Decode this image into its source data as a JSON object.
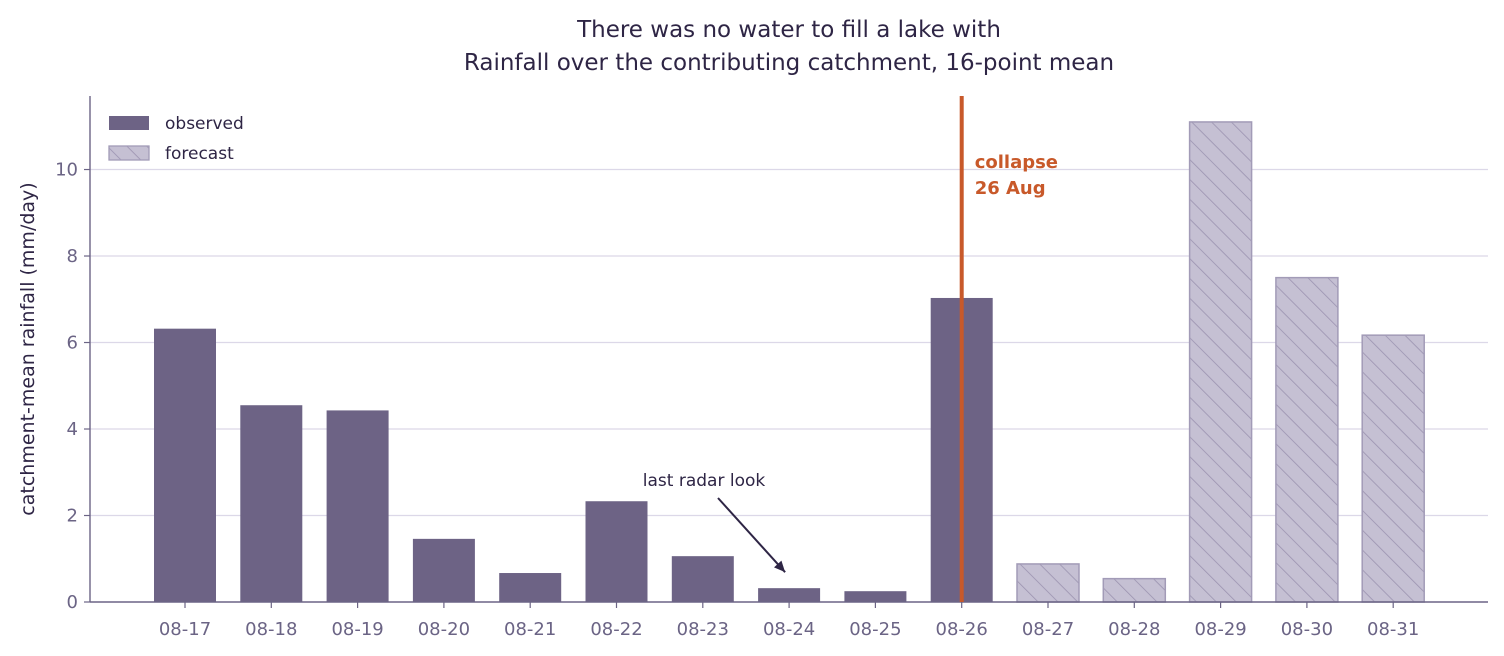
{
  "chart_data": {
    "type": "bar",
    "title": "There was no water to fill a lake with",
    "subtitle": "Rainfall over the contributing catchment, 16-point mean",
    "xlabel": "",
    "ylabel": "catchment-mean rainfall (mm/day)",
    "ylim": [
      0,
      11.7
    ],
    "yticks": [
      0,
      2,
      4,
      6,
      8,
      10
    ],
    "grid": "horizontal",
    "legend_position": "top-left",
    "categories": [
      "08-17",
      "08-18",
      "08-19",
      "08-20",
      "08-21",
      "08-22",
      "08-23",
      "08-24",
      "08-25",
      "08-26",
      "08-27",
      "08-28",
      "08-29",
      "08-30",
      "08-31"
    ],
    "series": [
      {
        "name": "observed",
        "color": "#6d6385",
        "values": [
          6.32,
          4.55,
          4.43,
          1.46,
          0.67,
          2.33,
          1.06,
          0.32,
          0.25,
          7.03,
          null,
          null,
          null,
          null,
          null
        ]
      },
      {
        "name": "forecast",
        "color": "#c5c0d3",
        "hatched": true,
        "values": [
          null,
          null,
          null,
          null,
          null,
          null,
          null,
          null,
          null,
          null,
          0.88,
          0.54,
          11.1,
          7.5,
          6.17
        ]
      }
    ],
    "annotations": [
      {
        "text": "last radar look",
        "target_category": "08-24",
        "target_value": 0.32,
        "arrow": true
      }
    ],
    "event_line": {
      "category": "08-26",
      "color": "#c8592a",
      "label_lines": [
        "collapse",
        "26 Aug"
      ]
    }
  }
}
